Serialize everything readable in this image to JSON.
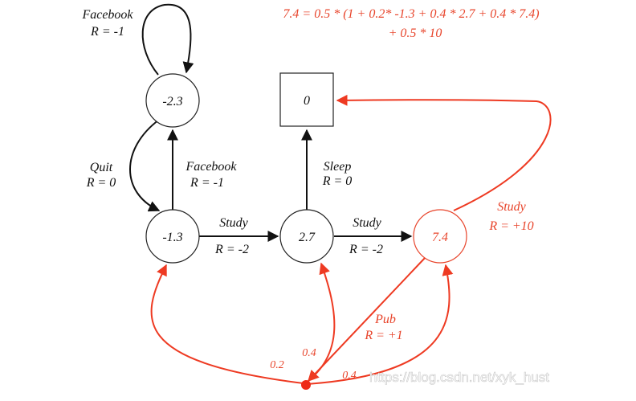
{
  "equation": {
    "line1": "7.4 = 0.5 * (1 + 0.2* -1.3 + 0.4 * 2.7 + 0.4 * 7.4)",
    "line2": "+ 0.5 * 10"
  },
  "states": {
    "facebook_state": "-2.3",
    "class1": "-1.3",
    "class2": "2.7",
    "class3": "7.4",
    "sleep": "0"
  },
  "edges": {
    "facebook_loop": {
      "action": "Facebook",
      "reward": "R = -1"
    },
    "quit": {
      "action": "Quit",
      "reward": "R = 0"
    },
    "facebook_up": {
      "action": "Facebook",
      "reward": "R = -1"
    },
    "study1": {
      "action": "Study",
      "reward": "R = -2"
    },
    "study2": {
      "action": "Study",
      "reward": "R = -2"
    },
    "sleep": {
      "action": "Sleep",
      "reward": "R = 0"
    },
    "study3": {
      "action": "Study",
      "reward": "R = +10"
    },
    "pub": {
      "action": "Pub",
      "reward": "R = +1"
    }
  },
  "pub_probabilities": {
    "to_class1": "0.2",
    "to_class2": "0.4",
    "to_class3": "0.4"
  },
  "watermark": "https://blog.csdn.net/xyk_hust",
  "colors": {
    "highlight": "#e8452c",
    "default": "#111111"
  }
}
